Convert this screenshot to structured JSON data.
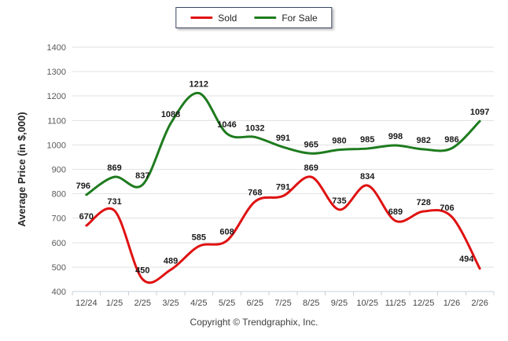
{
  "legend": {
    "items": [
      {
        "label": "Sold",
        "color": "#E01212"
      },
      {
        "label": "For Sale",
        "color": "#1E7B1E"
      }
    ]
  },
  "chart_data": {
    "type": "line",
    "x": [
      "12/24",
      "1/25",
      "2/25",
      "3/25",
      "4/25",
      "5/25",
      "6/25",
      "7/25",
      "8/25",
      "9/25",
      "10/25",
      "11/25",
      "12/25",
      "1/26",
      "2/26"
    ],
    "series": [
      {
        "name": "Sold",
        "color": "#E01212",
        "values": [
          670,
          731,
          450,
          489,
          585,
          608,
          768,
          791,
          869,
          735,
          834,
          689,
          728,
          706,
          494
        ],
        "label_offsets": [
          {
            "index": 14,
            "dx": -17,
            "dy": -1
          },
          {
            "index": 13,
            "dx": -6,
            "dy": 0
          }
        ]
      },
      {
        "name": "For Sale",
        "color": "#1E7B1E",
        "values": [
          796,
          869,
          837,
          1088,
          1212,
          1046,
          1032,
          991,
          965,
          980,
          985,
          998,
          982,
          986,
          1097
        ],
        "label_offsets": [
          {
            "index": 0,
            "dx": -4,
            "dy": 0
          }
        ]
      }
    ],
    "ylabel": "Average Price (in $,000)",
    "ylim": [
      400,
      1400
    ],
    "ytick_step": 100,
    "grid": "horizontal",
    "legend_position": "top-center",
    "smooth": true,
    "data_labels": true,
    "colors": {
      "gridline": "#E2E2E2",
      "axis": "#C7D0DB",
      "y_tick_label": "#595959",
      "x_tick_label": "#474747",
      "data_label": "#1A1A1A",
      "axis_title": "#262626"
    }
  },
  "footer": {
    "copyright": "Copyright © Trendgraphix, Inc."
  }
}
